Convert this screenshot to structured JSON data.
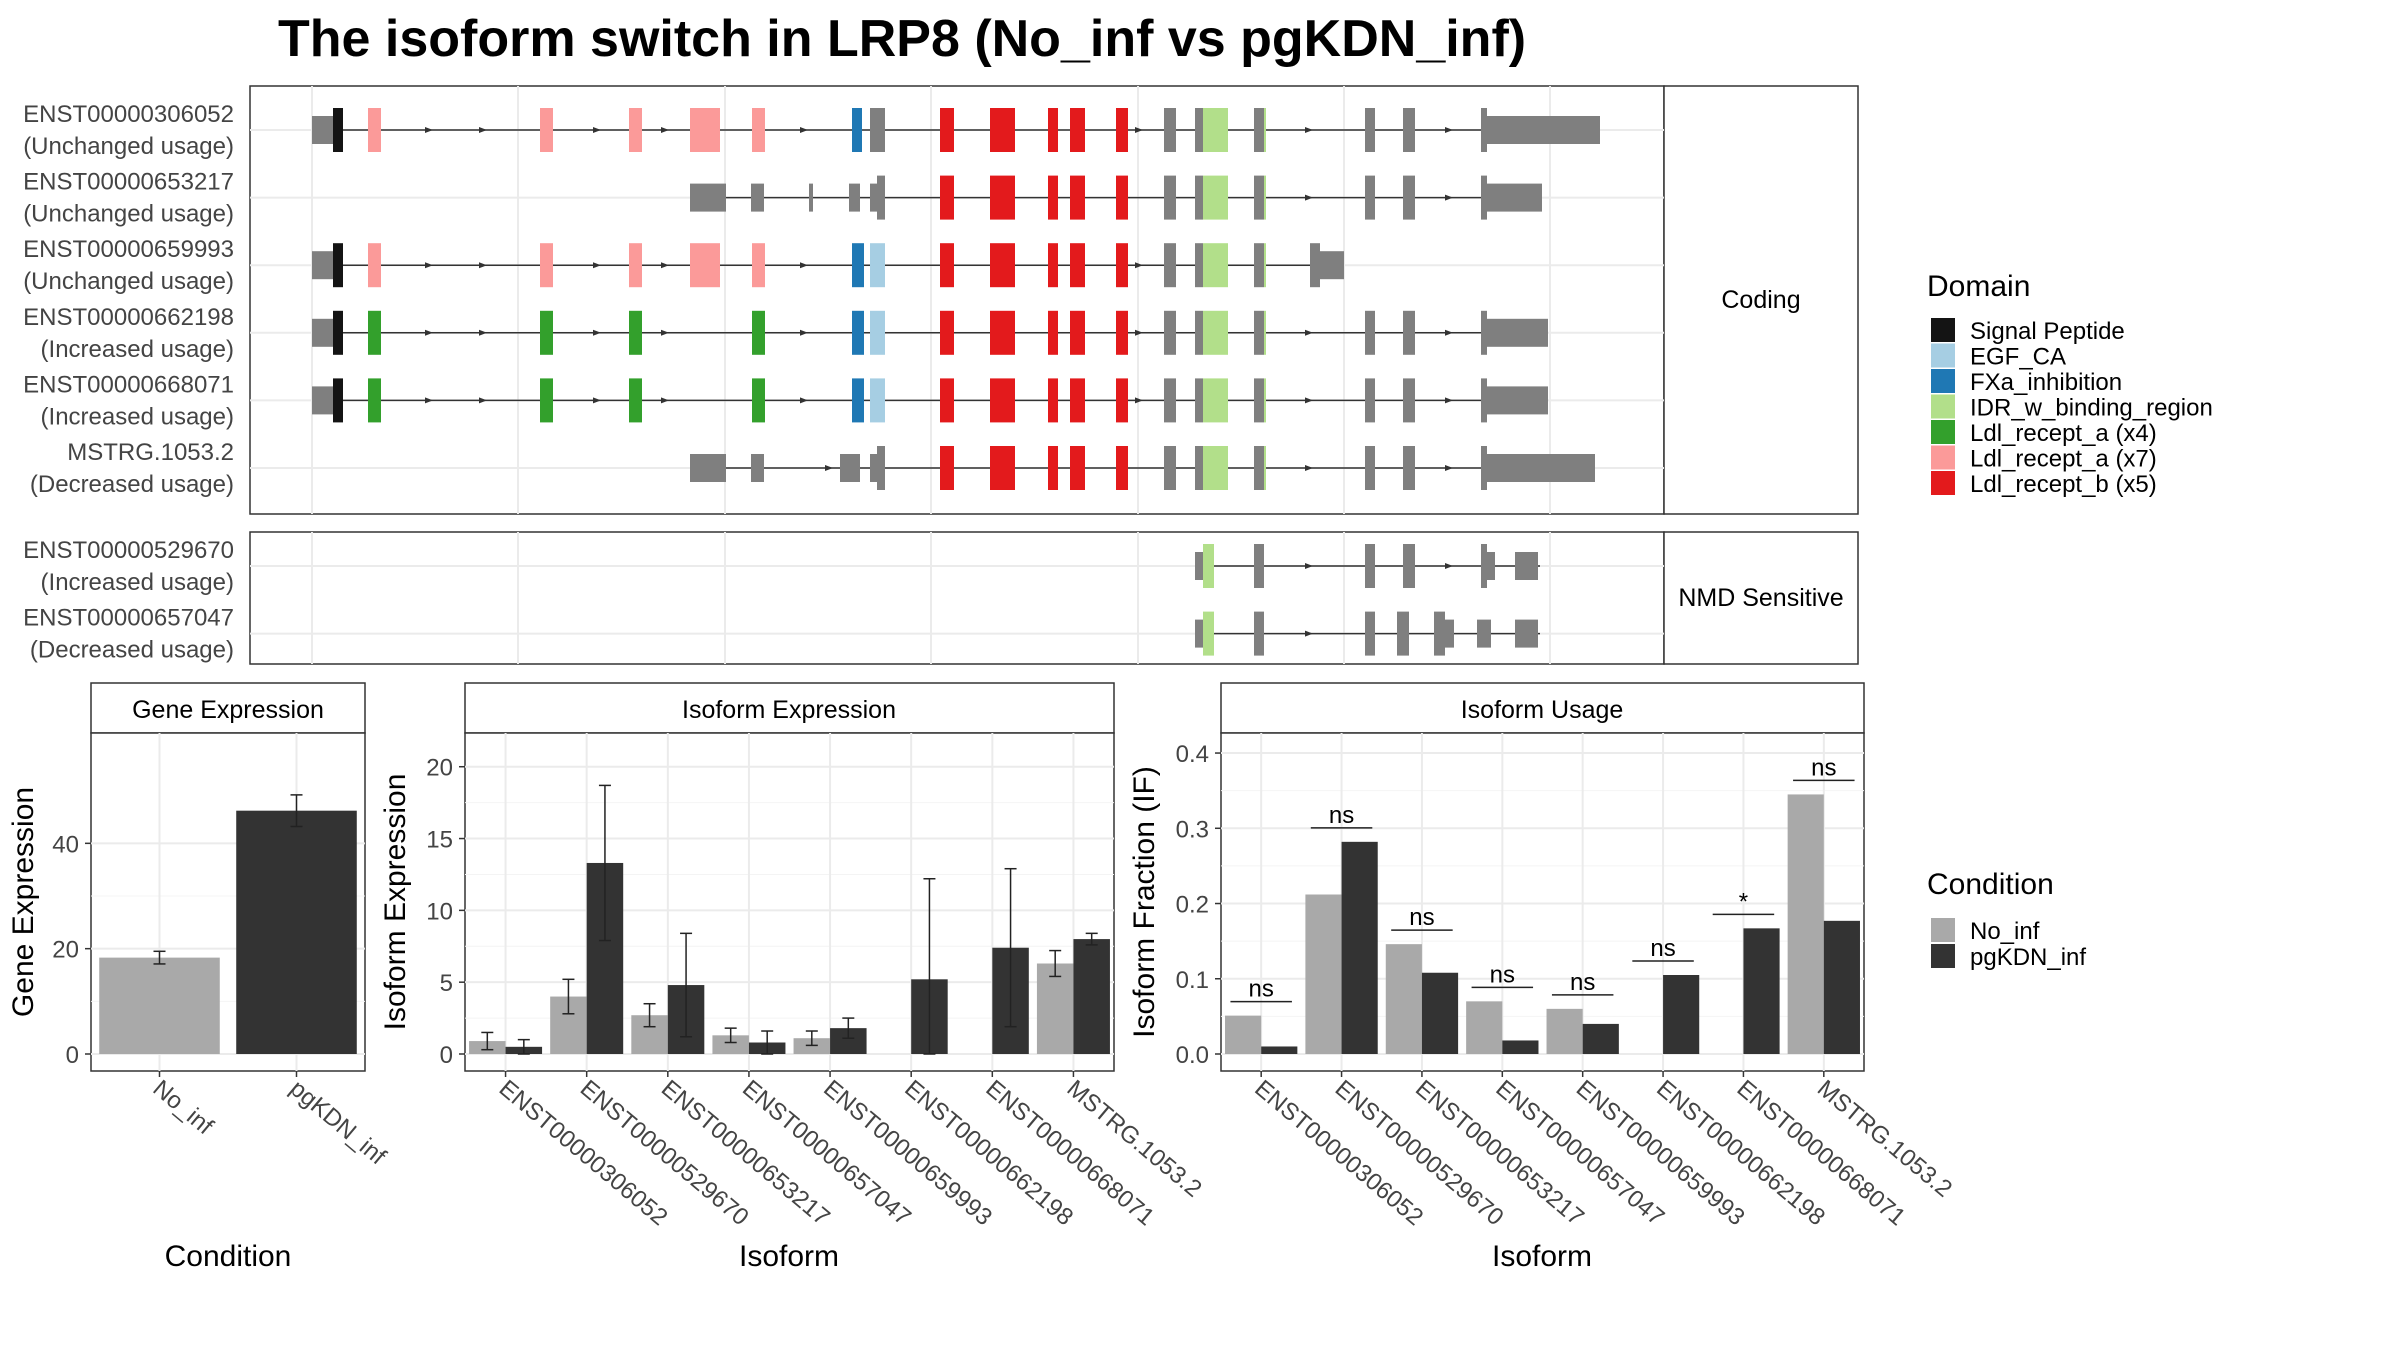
{
  "title": "The isoform switch in LRP8 (No_inf vs pgKDN_inf)",
  "structure_panel": {
    "coding_label": "Coding",
    "nmd_label": "NMD Sensitive",
    "coding_isoforms": [
      {
        "id": "ENST00000306052",
        "status": "(Unchanged usage)"
      },
      {
        "id": "ENST00000653217",
        "status": "(Unchanged usage)"
      },
      {
        "id": "ENST00000659993",
        "status": "(Unchanged usage)"
      },
      {
        "id": "ENST00000662198",
        "status": "(Increased usage)"
      },
      {
        "id": "ENST00000668071",
        "status": "(Increased usage)"
      },
      {
        "id": "MSTRG.1053.2",
        "status": "(Decreased usage)"
      }
    ],
    "nmd_isoforms": [
      {
        "id": "ENST00000529670",
        "status": "(Increased usage)"
      },
      {
        "id": "ENST00000657047",
        "status": "(Decreased usage)"
      }
    ]
  },
  "domain_legend": {
    "title": "Domain",
    "items": [
      {
        "label": "Signal Peptide",
        "color": "#141414"
      },
      {
        "label": "EGF_CA",
        "color": "#a6cee3"
      },
      {
        "label": "FXa_inhibition",
        "color": "#1f78b4"
      },
      {
        "label": "IDR_w_binding_region",
        "color": "#b2df8a"
      },
      {
        "label": "Ldl_recept_a (x4)",
        "color": "#33a02c"
      },
      {
        "label": "Ldl_recept_a (x7)",
        "color": "#fb9a99"
      },
      {
        "label": "Ldl_recept_b (x5)",
        "color": "#e31a1c"
      }
    ]
  },
  "condition_legend": {
    "title": "Condition",
    "items": [
      {
        "label": "No_inf",
        "color": "#a9a9a9"
      },
      {
        "label": "pgKDN_inf",
        "color": "#333333"
      }
    ]
  },
  "chart_data": [
    {
      "type": "bar",
      "title": "Gene Expression",
      "xlabel": "Condition",
      "ylabel": "Gene Expression",
      "categories": [
        "No_inf",
        "pgKDN_inf"
      ],
      "values": [
        18.3,
        46.2
      ],
      "errors": [
        1.2,
        3.0
      ],
      "ylim": [
        0,
        60
      ],
      "yticks": [
        0,
        20,
        40
      ]
    },
    {
      "type": "bar",
      "title": "Isoform Expression",
      "xlabel": "Isoform",
      "ylabel": "Isoform Expression",
      "categories": [
        "ENST00000306052",
        "ENST00000529670",
        "ENST00000653217",
        "ENST00000657047",
        "ENST00000659993",
        "ENST00000662198",
        "ENST00000668071",
        "MSTRG.1053.2"
      ],
      "series": [
        {
          "name": "No_inf",
          "values": [
            0.9,
            4.0,
            2.7,
            1.3,
            1.1,
            0.0,
            0.0,
            6.3
          ],
          "errors": [
            0.6,
            1.2,
            0.8,
            0.5,
            0.5,
            0.0,
            0.0,
            0.9
          ]
        },
        {
          "name": "pgKDN_inf",
          "values": [
            0.5,
            13.3,
            4.8,
            0.8,
            1.8,
            5.2,
            7.4,
            8.0
          ],
          "errors": [
            0.5,
            5.4,
            3.6,
            0.8,
            0.7,
            7.0,
            5.5,
            0.4
          ]
        }
      ],
      "ylim": [
        0,
        22
      ],
      "yticks": [
        0,
        5,
        10,
        15,
        20
      ]
    },
    {
      "type": "bar",
      "title": "Isoform Usage",
      "xlabel": "Isoform",
      "ylabel": "Isoform Fraction (IF)",
      "categories": [
        "ENST00000306052",
        "ENST00000529670",
        "ENST00000653217",
        "ENST00000657047",
        "ENST00000659993",
        "ENST00000662198",
        "ENST00000668071",
        "MSTRG.1053.2"
      ],
      "series": [
        {
          "name": "No_inf",
          "values": [
            0.051,
            0.212,
            0.146,
            0.07,
            0.06,
            0.0,
            0.0,
            0.345
          ]
        },
        {
          "name": "pgKDN_inf",
          "values": [
            0.01,
            0.282,
            0.108,
            0.018,
            0.04,
            0.105,
            0.167,
            0.177
          ]
        }
      ],
      "significance": [
        "ns",
        "ns",
        "ns",
        "ns",
        "ns",
        "ns",
        "*",
        "ns"
      ],
      "ylim": [
        0,
        0.42
      ],
      "yticks": [
        0.0,
        0.1,
        0.2,
        0.3,
        0.4
      ]
    }
  ]
}
